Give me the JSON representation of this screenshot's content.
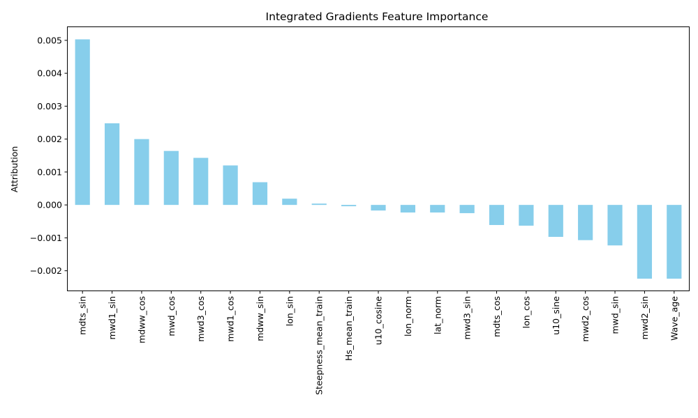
{
  "chart_data": {
    "type": "bar",
    "title": "Integrated Gradients Feature Importance",
    "xlabel": "",
    "ylabel": "Attribution",
    "bar_color": "#87ceeb",
    "grid": false,
    "ylim": [
      -0.0026,
      0.0054
    ],
    "yticks": [
      -0.002,
      -0.001,
      0.0,
      0.001,
      0.002,
      0.003,
      0.004,
      0.005
    ],
    "ytick_labels": [
      "−0.002",
      "−0.001",
      "0.000",
      "0.001",
      "0.002",
      "0.003",
      "0.004",
      "0.005"
    ],
    "categories": [
      "mdts_sin",
      "mwd1_sin",
      "mdww_cos",
      "mwd_cos",
      "mwd3_cos",
      "mwd1_cos",
      "mdww_sin",
      "lon_sin",
      "Steepness_mean_train",
      "Hs_mean_train",
      "u10_cosine",
      "lon_norm",
      "lat_norm",
      "mwd3_sin",
      "mdts_cos",
      "lon_cos",
      "u10_sine",
      "mwd2_cos",
      "mwd_sin",
      "mwd2_sin",
      "Wave_age"
    ],
    "values": [
      0.00503,
      0.00248,
      0.002,
      0.00164,
      0.00143,
      0.0012,
      0.00069,
      0.00019,
      4e-05,
      -4e-05,
      -0.00017,
      -0.00023,
      -0.00023,
      -0.00025,
      -0.00061,
      -0.00063,
      -0.00097,
      -0.00107,
      -0.00123,
      -0.00224,
      -0.00224
    ]
  }
}
